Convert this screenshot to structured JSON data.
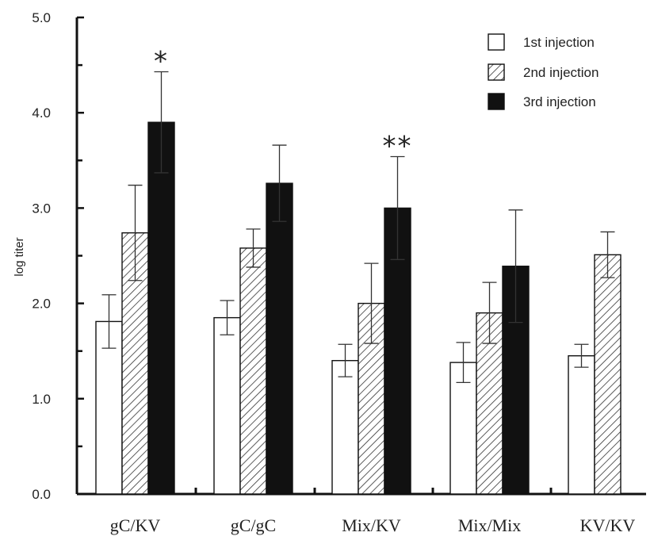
{
  "chart_data": {
    "type": "bar",
    "title": "",
    "xlabel": "",
    "ylabel": "log titer",
    "ylim": [
      0,
      5
    ],
    "yticks": [
      "0.0",
      "1.0",
      "2.0",
      "3.0",
      "4.0",
      "5.0"
    ],
    "categories": [
      "gC/KV",
      "gC/gC",
      "Mix/KV",
      "Mix/Mix",
      "KV/KV"
    ],
    "series": [
      {
        "name": "1st injection",
        "pattern": "open",
        "values": [
          1.81,
          1.85,
          1.4,
          1.38,
          1.45
        ],
        "errors": [
          0.28,
          0.18,
          0.17,
          0.21,
          0.12
        ]
      },
      {
        "name": "2nd injection",
        "pattern": "hatched",
        "values": [
          2.74,
          2.58,
          2.0,
          1.9,
          2.51
        ],
        "errors": [
          0.5,
          0.2,
          0.42,
          0.32,
          0.24
        ]
      },
      {
        "name": "3rd injection",
        "pattern": "solid",
        "values": [
          3.9,
          3.26,
          3.0,
          2.39,
          null
        ],
        "errors": [
          0.53,
          0.4,
          0.54,
          0.59,
          null
        ]
      }
    ],
    "annotations": [
      {
        "category": "gC/KV",
        "series": "3rd injection",
        "text": "*"
      },
      {
        "category": "Mix/KV",
        "series": "3rd injection",
        "text": "**"
      }
    ],
    "legend_position": "top-right",
    "grid": false,
    "colors": {
      "fill_solid": "#111111",
      "outline": "#111111",
      "hatch": "#333333"
    }
  }
}
